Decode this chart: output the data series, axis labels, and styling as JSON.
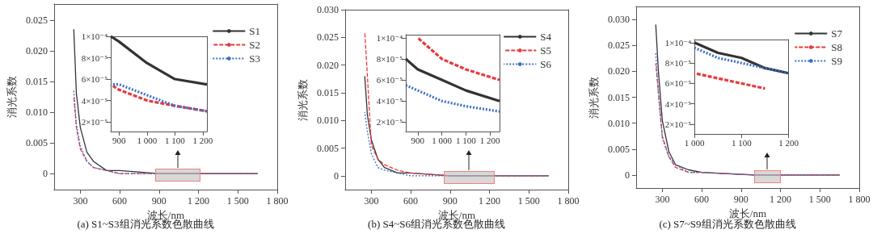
{
  "chart_data": [
    {
      "type": "line",
      "title": "(a) S1~S3组消光系数色散曲线",
      "xlabel": "波长/nm",
      "ylabel": "消光系数",
      "x": [
        250,
        270,
        300,
        350,
        400,
        500,
        600,
        900,
        1200,
        1650
      ],
      "series": [
        {
          "name": "S1",
          "color": "#333333",
          "line_style": "solid",
          "values": [
            0.0235,
            0.013,
            0.0075,
            0.0035,
            0.002,
            0.0005,
            0.0005,
            0,
            0,
            0
          ]
        },
        {
          "name": "S2",
          "color": "#e8383d",
          "line_style": "dashed",
          "values": [
            0.0125,
            0.0075,
            0.004,
            0.002,
            0.001,
            0.0005,
            0,
            0,
            0,
            0
          ]
        },
        {
          "name": "S3",
          "color": "#3a6fc4",
          "line_style": "dotted",
          "values": [
            0.0135,
            0.008,
            0.0045,
            0.002,
            0.001,
            0.0005,
            0,
            0,
            0,
            0
          ]
        }
      ],
      "xlim": [
        100,
        1800
      ],
      "xticks": [
        300,
        600,
        900,
        {
          "value": 1200,
          "label": "1 200"
        },
        {
          "value": 1500,
          "label": "1 500"
        },
        {
          "value": 1800,
          "label": "1 800"
        }
      ],
      "ylim": [
        -0.0026,
        0.0276
      ],
      "yticks": [
        0,
        0.005,
        {
          "value": 0.01,
          "label": "0.010"
        },
        0.015,
        {
          "value": 0.02,
          "label": "0.020"
        },
        0.025
      ],
      "grid": false,
      "legend": "top right"
    },
    {
      "type": "line",
      "x": [
        870,
        900,
        1000,
        1100,
        1215
      ],
      "series": [
        {
          "color": "#333333",
          "line_style": "solid",
          "values": [
            0.0001,
            9.5e-05,
            7.5e-05,
            6e-05,
            5.5e-05
          ]
        },
        {
          "color": "#e8383d",
          "line_style": "dashed",
          "values": [
            5.5e-05,
            5e-05,
            4e-05,
            3.5e-05,
            3e-05
          ]
        },
        {
          "color": "#3a6fc4",
          "line_style": "dotted",
          "values": [
            5.5e-05,
            5.5e-05,
            4.5e-05,
            3.5e-05,
            3e-05
          ]
        }
      ],
      "xlim": [
        870,
        1215
      ],
      "xticks": [
        900,
        {
          "value": 1000,
          "label": "1 000"
        },
        {
          "value": 1100,
          "label": "1 100"
        },
        {
          "value": 1200,
          "label": "1 200"
        }
      ],
      "ylim": [
        1.1e-05,
        0.0001
      ],
      "yticks": [
        {
          "value": 2e-05,
          "label": "2×10⁻⁵"
        },
        {
          "value": 4e-05,
          "label": "4×10⁻⁵"
        },
        {
          "value": 6e-05,
          "label": "6×10⁻⁵"
        },
        {
          "value": 8e-05,
          "label": "8×10⁻⁵"
        },
        {
          "value": 0.0001,
          "label": "1×10⁻⁴"
        }
      ],
      "grid": false,
      "legend": false
    },
    {
      "type": "line",
      "title": "(b) S4~S6组消光系数色散曲线",
      "xlabel": "波长/nm",
      "ylabel": "消光系数",
      "x": [
        250,
        270,
        300,
        350,
        400,
        500,
        600,
        900,
        1200,
        1650
      ],
      "series": [
        {
          "name": "S4",
          "color": "#333333",
          "line_style": "solid",
          "values": [
            0.018,
            0.011,
            0.0065,
            0.003,
            0.0015,
            0.0005,
            0.0005,
            0,
            0,
            0
          ]
        },
        {
          "name": "S5",
          "color": "#e8383d",
          "line_style": "dashed",
          "values": [
            0.026,
            0.018,
            0.0055,
            0.003,
            0.002,
            0.001,
            0.0005,
            0,
            0,
            0
          ]
        },
        {
          "name": "S6",
          "color": "#3a6fc4",
          "line_style": "dotted",
          "values": [
            0.0115,
            0.008,
            0.004,
            0.0015,
            0.001,
            0.0005,
            0,
            0,
            0,
            0
          ]
        }
      ],
      "xlim": [
        100,
        1800
      ],
      "xticks": [
        300,
        600,
        900,
        {
          "value": 1200,
          "label": "1 200"
        },
        {
          "value": 1500,
          "label": "1 500"
        },
        {
          "value": 1800,
          "label": "1 800"
        }
      ],
      "ylim": [
        -0.0025,
        0.03
      ],
      "yticks": [
        0,
        0.005,
        {
          "value": 0.01,
          "label": "0.010"
        },
        0.015,
        {
          "value": 0.02,
          "label": "0.020"
        },
        0.025,
        {
          "value": 0.03,
          "label": "0.030"
        }
      ],
      "grid": false,
      "legend": "top right"
    },
    {
      "type": "line",
      "x": [
        850,
        900,
        1000,
        1100,
        1240
      ],
      "series": [
        {
          "color": "#333333",
          "line_style": "solid",
          "values": [
            8e-05,
            7e-05,
            6e-05,
            5e-05,
            4e-05
          ]
        },
        {
          "color": "#e8383d",
          "line_style": "dashed",
          "values": [
            null,
            0.0001,
            8e-05,
            7e-05,
            6e-05
          ]
        },
        {
          "color": "#3a6fc4",
          "line_style": "dotted",
          "values": [
            5.5e-05,
            5e-05,
            4e-05,
            3.5e-05,
            3e-05
          ]
        }
      ],
      "xlim": [
        850,
        1240
      ],
      "xticks": [
        900,
        {
          "value": 1000,
          "label": "1 000"
        },
        {
          "value": 1100,
          "label": "1 100"
        },
        {
          "value": 1200,
          "label": "1 200"
        }
      ],
      "ylim": [
        1.1e-05,
        0.000103
      ],
      "yticks": [
        {
          "value": 2e-05,
          "label": "2×10⁻⁵"
        },
        {
          "value": 4e-05,
          "label": "4×10⁻⁵"
        },
        {
          "value": 6e-05,
          "label": "6×10⁻⁵"
        },
        {
          "value": 8e-05,
          "label": "8×10⁻⁵"
        },
        {
          "value": 0.0001,
          "label": "1×10⁻⁴"
        }
      ],
      "grid": false,
      "legend": false
    },
    {
      "type": "line",
      "title": "(c) S7~S9组消光系数色散曲线",
      "xlabel": "波长/nm",
      "ylabel": "消光系数",
      "x": [
        250,
        270,
        300,
        350,
        400,
        500,
        600,
        1000,
        1200,
        1650
      ],
      "series": [
        {
          "name": "S7",
          "color": "#333333",
          "line_style": "solid",
          "values": [
            0.029,
            0.02,
            0.0105,
            0.0045,
            0.002,
            0.001,
            0.0005,
            0,
            0,
            0
          ]
        },
        {
          "name": "S8",
          "color": "#e8383d",
          "line_style": "dashed",
          "values": [
            0.0215,
            0.016,
            0.0075,
            0.0035,
            0.0015,
            0.0005,
            0.0005,
            0,
            0,
            0
          ]
        },
        {
          "name": "S9",
          "color": "#3a6fc4",
          "line_style": "dotted",
          "values": [
            0.0235,
            0.0155,
            0.007,
            0.0035,
            0.002,
            0.0005,
            0.0005,
            0,
            0,
            0
          ]
        }
      ],
      "xlim": [
        100,
        1800
      ],
      "xticks": [
        300,
        600,
        900,
        {
          "value": 1200,
          "label": "1 200"
        },
        {
          "value": 1500,
          "label": "1 500"
        },
        {
          "value": 1800,
          "label": "1 800"
        }
      ],
      "ylim": [
        -0.0025,
        0.0325
      ],
      "yticks": [
        0,
        0.005,
        {
          "value": 0.01,
          "label": "0.010"
        },
        0.015,
        {
          "value": 0.02,
          "label": "0.020"
        },
        0.025,
        {
          "value": 0.03,
          "label": "0.030"
        }
      ],
      "grid": false,
      "legend": "top right"
    },
    {
      "type": "line",
      "x": [
        1000,
        1050,
        1100,
        1150,
        1200
      ],
      "series": [
        {
          "color": "#333333",
          "line_style": "solid",
          "values": [
            0.0001,
            9e-05,
            8.5e-05,
            7.5e-05,
            7e-05
          ]
        },
        {
          "color": "#e8383d",
          "line_style": "dashed",
          "values": [
            7e-05,
            6.5e-05,
            6e-05,
            5.5e-05,
            null
          ]
        },
        {
          "color": "#3a6fc4",
          "line_style": "dotted",
          "values": [
            9.5e-05,
            8.5e-05,
            8e-05,
            7.5e-05,
            7e-05
          ]
        }
      ],
      "xlim": [
        1000,
        1200
      ],
      "xticks": [
        {
          "value": 1000,
          "label": "1 000"
        },
        {
          "value": 1100,
          "label": "1 100"
        },
        {
          "value": 1200,
          "label": "1 200"
        }
      ],
      "ylim": [
        1.05e-05,
        0.000103
      ],
      "yticks": [
        {
          "value": 2e-05,
          "label": "2×10⁻⁵"
        },
        {
          "value": 4e-05,
          "label": "4×10⁻⁵"
        },
        {
          "value": 6e-05,
          "label": "6×10⁻⁵"
        },
        {
          "value": 8e-05,
          "label": "8×10⁻⁵"
        },
        {
          "value": 0.0001,
          "label": "1×10⁻⁴"
        }
      ],
      "grid": false,
      "legend": false
    }
  ]
}
